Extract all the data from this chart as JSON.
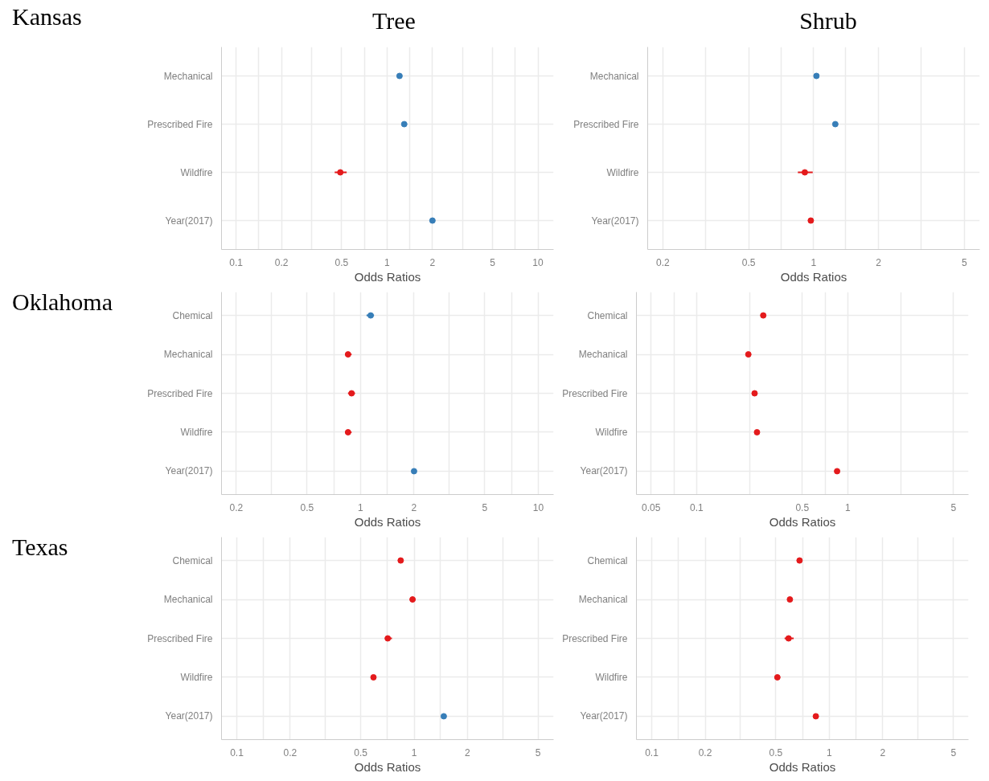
{
  "chart_data": [
    {
      "type": "scatter",
      "title": "Tree",
      "ylabel": "Kansas",
      "xlabel": "Odds Ratios",
      "orientation": "horizontal",
      "log": "x",
      "grid": true,
      "marker": "circle",
      "categories": [
        "Mechanical",
        "Prescribed Fire",
        "Wildfire",
        "Year(2017)"
      ],
      "values": [
        1.21,
        1.3,
        0.49,
        2.0
      ],
      "errors": [
        null,
        null,
        [
          0.45,
          0.54
        ],
        null
      ],
      "colors": [
        "#377eb8",
        "#377eb8",
        "#e41a1c",
        "#377eb8"
      ],
      "xlim": [
        0.08,
        12.7
      ],
      "xticks": [
        0.1,
        {
          "value": 0.141,
          "label": null
        },
        0.2,
        {
          "value": 0.316,
          "label": null
        },
        0.5,
        {
          "value": 0.707,
          "label": null
        },
        1,
        {
          "value": 1.41,
          "label": null
        },
        2,
        {
          "value": 3.16,
          "label": null
        },
        5,
        {
          "value": 7.07,
          "label": null
        },
        10
      ]
    },
    {
      "type": "scatter",
      "title": "Shrub",
      "xlabel": "Odds Ratios",
      "orientation": "horizontal",
      "log": "x",
      "grid": true,
      "marker": "circle",
      "categories": [
        "Mechanical",
        "Prescribed Fire",
        "Wildfire",
        "Year(2017)"
      ],
      "values": [
        1.03,
        1.26,
        0.91,
        0.97
      ],
      "errors": [
        null,
        null,
        [
          0.845,
          0.99
        ],
        null
      ],
      "colors": [
        "#377eb8",
        "#377eb8",
        "#e41a1c",
        "#e41a1c"
      ],
      "xlim": [
        0.17,
        5.89
      ],
      "xticks": [
        0.2,
        {
          "value": 0.316,
          "label": null
        },
        0.5,
        {
          "value": 0.707,
          "label": null
        },
        1,
        {
          "value": 1.41,
          "label": null
        },
        2,
        {
          "value": 3.16,
          "label": null
        },
        5
      ]
    },
    {
      "type": "scatter",
      "ylabel": "Oklahoma",
      "xlabel": "Odds Ratios",
      "orientation": "horizontal",
      "log": "x",
      "grid": true,
      "marker": "circle",
      "categories": [
        "Chemical",
        "Mechanical",
        "Prescribed Fire",
        "Wildfire",
        "Year(2017)"
      ],
      "values": [
        1.14,
        0.85,
        0.89,
        0.85,
        2.0
      ],
      "errors": [
        [
          1.08,
          1.19
        ],
        [
          0.82,
          0.89
        ],
        [
          0.85,
          0.93
        ],
        [
          0.82,
          0.89
        ],
        null
      ],
      "colors": [
        "#377eb8",
        "#e41a1c",
        "#e41a1c",
        "#e41a1c",
        "#377eb8"
      ],
      "xlim": [
        0.165,
        12.2
      ],
      "xticks": [
        0.2,
        {
          "value": 0.316,
          "label": null
        },
        0.5,
        {
          "value": 0.707,
          "label": null
        },
        1,
        {
          "value": 1.41,
          "label": null
        },
        2,
        {
          "value": 3.16,
          "label": null
        },
        5,
        {
          "value": 7.07,
          "label": null
        },
        10
      ]
    },
    {
      "type": "scatter",
      "xlabel": "Odds Ratios",
      "orientation": "horizontal",
      "log": "x",
      "grid": true,
      "marker": "circle",
      "categories": [
        "Chemical",
        "Mechanical",
        "Prescribed Fire",
        "Wildfire",
        "Year(2017)"
      ],
      "values": [
        0.276,
        0.22,
        0.242,
        0.251,
        0.85
      ],
      "errors": [
        null,
        null,
        null,
        null,
        null
      ],
      "colors": [
        "#e41a1c",
        "#e41a1c",
        "#e41a1c",
        "#e41a1c",
        "#e41a1c"
      ],
      "xlim": [
        0.04,
        6.29
      ],
      "xticks": [
        0.05,
        {
          "value": 0.0707,
          "label": null
        },
        0.1,
        {
          "value": 0.224,
          "label": null
        },
        0.5,
        {
          "value": 0.707,
          "label": null
        },
        1,
        {
          "value": 2.24,
          "label": null
        },
        5
      ]
    },
    {
      "type": "scatter",
      "ylabel": "Texas",
      "xlabel": "Odds Ratios",
      "orientation": "horizontal",
      "log": "x",
      "grid": true,
      "marker": "circle",
      "categories": [
        "Chemical",
        "Mechanical",
        "Prescribed Fire",
        "Wildfire",
        "Year(2017)"
      ],
      "values": [
        0.84,
        0.98,
        0.71,
        0.59,
        1.47
      ],
      "errors": [
        null,
        null,
        [
          0.685,
          0.75
        ],
        null,
        null
      ],
      "colors": [
        "#e41a1c",
        "#e41a1c",
        "#e41a1c",
        "#e41a1c",
        "#377eb8"
      ],
      "xlim": [
        0.082,
        6.12
      ],
      "xticks": [
        0.1,
        {
          "value": 0.141,
          "label": null
        },
        0.2,
        {
          "value": 0.316,
          "label": null
        },
        0.5,
        {
          "value": 0.707,
          "label": null
        },
        1,
        {
          "value": 1.41,
          "label": null
        },
        2,
        {
          "value": 3.16,
          "label": null
        },
        5
      ]
    },
    {
      "type": "scatter",
      "xlabel": "Odds Ratios",
      "orientation": "horizontal",
      "log": "x",
      "grid": true,
      "marker": "circle",
      "categories": [
        "Chemical",
        "Mechanical",
        "Prescribed Fire",
        "Wildfire",
        "Year(2017)"
      ],
      "values": [
        0.68,
        0.6,
        0.59,
        0.51,
        0.84
      ],
      "errors": [
        null,
        null,
        [
          0.56,
          0.63
        ],
        null,
        null
      ],
      "colors": [
        "#e41a1c",
        "#e41a1c",
        "#e41a1c",
        "#e41a1c",
        "#e41a1c"
      ],
      "xlim": [
        0.082,
        6.08
      ],
      "xticks": [
        0.1,
        {
          "value": 0.141,
          "label": null
        },
        0.2,
        {
          "value": 0.316,
          "label": null
        },
        0.5,
        {
          "value": 0.707,
          "label": null
        },
        1,
        {
          "value": 1.41,
          "label": null
        },
        2,
        {
          "value": 3.16,
          "label": null
        },
        5
      ]
    }
  ]
}
